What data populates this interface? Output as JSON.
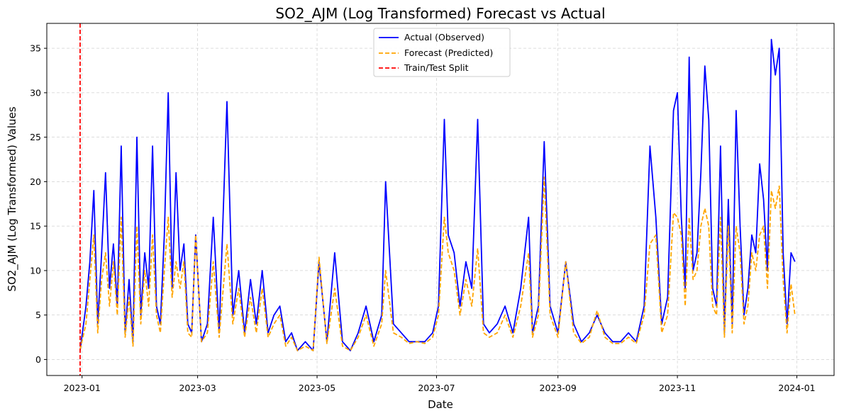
{
  "chart_data": {
    "type": "line",
    "title": "SO2_AJM (Log Transformed) Forecast vs Actual",
    "xlabel": "Date",
    "ylabel": "SO2_AJM (Log Transformed) Values",
    "xlim": [
      "2022-12-14",
      "2024-01-20"
    ],
    "ylim": [
      -1.8,
      37.8
    ],
    "x_ticks": [
      "2023-01",
      "2023-03",
      "2023-05",
      "2023-07",
      "2023-09",
      "2023-11",
      "2024-01"
    ],
    "y_ticks": [
      0,
      5,
      10,
      15,
      20,
      25,
      30,
      35
    ],
    "grid": true,
    "legend_position": "top-center",
    "split_date": "2022-12-31",
    "series": [
      {
        "name": "Actual (Observed)",
        "color": "#0000ff",
        "style": "solid",
        "x": [
          "2022-12-31",
          "2023-01-03",
          "2023-01-05",
          "2023-01-07",
          "2023-01-09",
          "2023-01-11",
          "2023-01-13",
          "2023-01-15",
          "2023-01-17",
          "2023-01-19",
          "2023-01-21",
          "2023-01-23",
          "2023-01-25",
          "2023-01-27",
          "2023-01-29",
          "2023-01-31",
          "2023-02-02",
          "2023-02-04",
          "2023-02-06",
          "2023-02-08",
          "2023-02-10",
          "2023-02-12",
          "2023-02-14",
          "2023-02-16",
          "2023-02-18",
          "2023-02-20",
          "2023-02-22",
          "2023-02-24",
          "2023-02-26",
          "2023-02-28",
          "2023-03-03",
          "2023-03-06",
          "2023-03-09",
          "2023-03-12",
          "2023-03-16",
          "2023-03-19",
          "2023-03-22",
          "2023-03-25",
          "2023-03-28",
          "2023-03-31",
          "2023-04-03",
          "2023-04-06",
          "2023-04-09",
          "2023-04-12",
          "2023-04-15",
          "2023-04-18",
          "2023-04-21",
          "2023-04-25",
          "2023-04-29",
          "2023-05-02",
          "2023-05-06",
          "2023-05-10",
          "2023-05-14",
          "2023-05-18",
          "2023-05-22",
          "2023-05-26",
          "2023-05-30",
          "2023-06-03",
          "2023-06-05",
          "2023-06-09",
          "2023-06-13",
          "2023-06-17",
          "2023-06-21",
          "2023-06-25",
          "2023-06-29",
          "2023-07-02",
          "2023-07-05",
          "2023-07-07",
          "2023-07-10",
          "2023-07-13",
          "2023-07-16",
          "2023-07-19",
          "2023-07-22",
          "2023-07-25",
          "2023-07-28",
          "2023-08-01",
          "2023-08-05",
          "2023-08-09",
          "2023-08-13",
          "2023-08-17",
          "2023-08-19",
          "2023-08-22",
          "2023-08-25",
          "2023-08-28",
          "2023-09-01",
          "2023-09-05",
          "2023-09-09",
          "2023-09-13",
          "2023-09-17",
          "2023-09-21",
          "2023-09-25",
          "2023-09-29",
          "2023-10-03",
          "2023-10-07",
          "2023-10-11",
          "2023-10-15",
          "2023-10-18",
          "2023-10-21",
          "2023-10-24",
          "2023-10-27",
          "2023-10-30",
          "2023-11-01",
          "2023-11-03",
          "2023-11-05",
          "2023-11-07",
          "2023-11-09",
          "2023-11-11",
          "2023-11-13",
          "2023-11-15",
          "2023-11-17",
          "2023-11-19",
          "2023-11-21",
          "2023-11-23",
          "2023-11-25",
          "2023-11-27",
          "2023-11-29",
          "2023-12-01",
          "2023-12-03",
          "2023-12-05",
          "2023-12-07",
          "2023-12-09",
          "2023-12-11",
          "2023-12-13",
          "2023-12-15",
          "2023-12-17",
          "2023-12-19",
          "2023-12-21",
          "2023-12-23",
          "2023-12-25",
          "2023-12-27",
          "2023-12-29",
          "2023-12-31"
        ],
        "values": [
          1.0,
          6.0,
          11.0,
          19.0,
          4.0,
          12.0,
          21.0,
          8.0,
          13.0,
          6.0,
          24.0,
          3.0,
          9.0,
          2.0,
          25.0,
          5.0,
          12.0,
          8.0,
          24.0,
          6.0,
          4.0,
          14.0,
          30.0,
          8.0,
          21.0,
          10.0,
          13.0,
          4.0,
          3.0,
          14.0,
          2.0,
          4.0,
          16.0,
          3.0,
          29.0,
          5.0,
          10.0,
          3.0,
          9.0,
          4.0,
          10.0,
          3.0,
          5.0,
          6.0,
          2.0,
          3.0,
          1.0,
          2.0,
          1.0,
          11.0,
          2.0,
          12.0,
          2.0,
          1.0,
          3.0,
          6.0,
          2.0,
          5.0,
          20.0,
          4.0,
          3.0,
          2.0,
          2.0,
          2.0,
          3.0,
          6.0,
          27.0,
          14.0,
          12.0,
          6.0,
          11.0,
          8.0,
          27.0,
          4.0,
          3.0,
          4.0,
          6.0,
          3.0,
          8.0,
          16.0,
          3.0,
          6.0,
          24.5,
          6.0,
          3.0,
          11.0,
          4.0,
          2.0,
          3.0,
          5.0,
          3.0,
          2.0,
          2.0,
          3.0,
          2.0,
          6.0,
          24.0,
          16.0,
          4.0,
          7.0,
          28.0,
          30.0,
          16.0,
          8.0,
          34.0,
          10.0,
          12.0,
          21.0,
          33.0,
          27.0,
          8.0,
          6.0,
          24.0,
          3.0,
          18.0,
          4.0,
          28.0,
          15.0,
          5.0,
          8.0,
          14.0,
          12.0,
          22.0,
          18.0,
          10.0,
          36.0,
          32.0,
          35.0,
          12.0,
          4.0,
          12.0,
          11.0
        ]
      },
      {
        "name": "Forecast (Predicted)",
        "color": "#ffa500",
        "style": "dashed",
        "x": [
          "2022-12-31",
          "2023-01-03",
          "2023-01-05",
          "2023-01-07",
          "2023-01-09",
          "2023-01-11",
          "2023-01-13",
          "2023-01-15",
          "2023-01-17",
          "2023-01-19",
          "2023-01-21",
          "2023-01-23",
          "2023-01-25",
          "2023-01-27",
          "2023-01-29",
          "2023-01-31",
          "2023-02-02",
          "2023-02-04",
          "2023-02-06",
          "2023-02-08",
          "2023-02-10",
          "2023-02-12",
          "2023-02-14",
          "2023-02-16",
          "2023-02-18",
          "2023-02-20",
          "2023-02-22",
          "2023-02-24",
          "2023-02-26",
          "2023-02-28",
          "2023-03-03",
          "2023-03-06",
          "2023-03-09",
          "2023-03-12",
          "2023-03-16",
          "2023-03-19",
          "2023-03-22",
          "2023-03-25",
          "2023-03-28",
          "2023-03-31",
          "2023-04-03",
          "2023-04-06",
          "2023-04-09",
          "2023-04-12",
          "2023-04-15",
          "2023-04-18",
          "2023-04-21",
          "2023-04-25",
          "2023-04-29",
          "2023-05-02",
          "2023-05-06",
          "2023-05-10",
          "2023-05-14",
          "2023-05-18",
          "2023-05-22",
          "2023-05-26",
          "2023-05-30",
          "2023-06-03",
          "2023-06-05",
          "2023-06-09",
          "2023-06-13",
          "2023-06-17",
          "2023-06-21",
          "2023-06-25",
          "2023-06-29",
          "2023-07-02",
          "2023-07-05",
          "2023-07-07",
          "2023-07-10",
          "2023-07-13",
          "2023-07-16",
          "2023-07-19",
          "2023-07-22",
          "2023-07-25",
          "2023-07-28",
          "2023-08-01",
          "2023-08-05",
          "2023-08-09",
          "2023-08-13",
          "2023-08-17",
          "2023-08-19",
          "2023-08-22",
          "2023-08-25",
          "2023-08-28",
          "2023-09-01",
          "2023-09-05",
          "2023-09-09",
          "2023-09-13",
          "2023-09-17",
          "2023-09-21",
          "2023-09-25",
          "2023-09-29",
          "2023-10-03",
          "2023-10-07",
          "2023-10-11",
          "2023-10-15",
          "2023-10-18",
          "2023-10-21",
          "2023-10-24",
          "2023-10-27",
          "2023-10-30",
          "2023-11-01",
          "2023-11-03",
          "2023-11-05",
          "2023-11-07",
          "2023-11-09",
          "2023-11-11",
          "2023-11-13",
          "2023-11-15",
          "2023-11-17",
          "2023-11-19",
          "2023-11-21",
          "2023-11-23",
          "2023-11-25",
          "2023-11-27",
          "2023-11-29",
          "2023-12-01",
          "2023-12-03",
          "2023-12-05",
          "2023-12-07",
          "2023-12-09",
          "2023-12-11",
          "2023-12-13",
          "2023-12-15",
          "2023-12-17",
          "2023-12-19",
          "2023-12-21",
          "2023-12-23",
          "2023-12-25",
          "2023-12-27",
          "2023-12-29",
          "2023-12-31"
        ],
        "values": [
          1.1,
          4.0,
          9.0,
          14.0,
          3.0,
          9.0,
          12.0,
          6.0,
          11.0,
          5.0,
          16.0,
          2.5,
          7.0,
          1.5,
          15.0,
          4.0,
          10.0,
          6.0,
          14.0,
          5.0,
          3.0,
          10.0,
          16.0,
          7.0,
          11.0,
          8.0,
          11.0,
          3.0,
          2.5,
          14.0,
          2.0,
          3.0,
          11.0,
          2.5,
          13.0,
          4.0,
          8.0,
          2.5,
          7.0,
          3.0,
          8.0,
          2.5,
          4.0,
          5.0,
          1.5,
          2.5,
          1.0,
          1.5,
          1.0,
          11.5,
          1.8,
          8.0,
          1.5,
          1.0,
          2.5,
          5.0,
          1.5,
          4.0,
          10.0,
          3.0,
          2.5,
          1.8,
          2.0,
          1.8,
          2.5,
          5.0,
          16.0,
          12.0,
          10.0,
          5.0,
          9.0,
          6.0,
          12.5,
          3.0,
          2.5,
          3.0,
          5.0,
          2.5,
          6.0,
          12.0,
          2.5,
          5.0,
          20.5,
          5.0,
          2.5,
          11.0,
          3.0,
          1.8,
          2.5,
          5.5,
          2.5,
          1.8,
          1.8,
          2.5,
          1.8,
          5.0,
          13.0,
          14.0,
          3.0,
          5.0,
          16.5,
          16.0,
          14.0,
          6.0,
          16.0,
          9.0,
          10.0,
          15.0,
          17.0,
          15.0,
          6.0,
          5.0,
          16.0,
          2.5,
          15.0,
          3.0,
          15.0,
          12.0,
          4.0,
          6.0,
          12.0,
          10.0,
          14.0,
          15.0,
          8.0,
          19.0,
          17.0,
          19.5,
          9.0,
          3.0,
          8.5,
          5.0
        ]
      },
      {
        "name": "Train/Test Split",
        "color": "#ff0000",
        "style": "dashed"
      }
    ]
  }
}
